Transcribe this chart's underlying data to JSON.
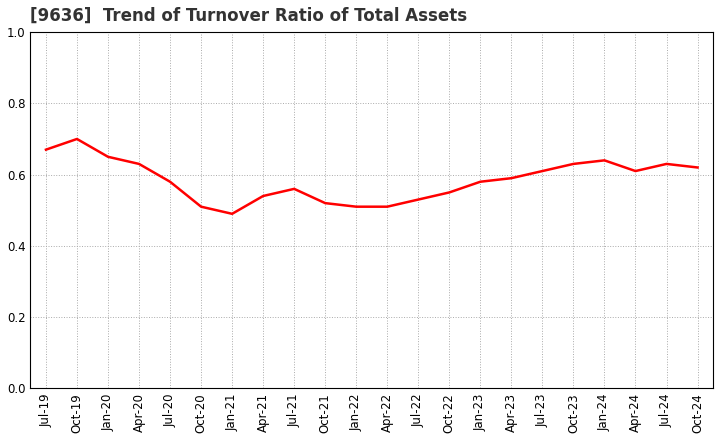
{
  "title": "[9636]  Trend of Turnover Ratio of Total Assets",
  "x_labels": [
    "Jul-19",
    "Oct-19",
    "Jan-20",
    "Apr-20",
    "Jul-20",
    "Oct-20",
    "Jan-21",
    "Apr-21",
    "Jul-21",
    "Oct-21",
    "Jan-22",
    "Apr-22",
    "Jul-22",
    "Oct-22",
    "Jan-23",
    "Apr-23",
    "Jul-23",
    "Oct-23",
    "Jan-24",
    "Apr-24",
    "Jul-24",
    "Oct-24"
  ],
  "values": [
    0.67,
    0.7,
    0.65,
    0.63,
    0.58,
    0.51,
    0.49,
    0.54,
    0.56,
    0.52,
    0.51,
    0.51,
    0.53,
    0.55,
    0.58,
    0.59,
    0.61,
    0.63,
    0.64,
    0.61,
    0.63,
    0.62
  ],
  "line_color": "#FF0000",
  "line_width": 1.8,
  "ylim": [
    0.0,
    1.0
  ],
  "yticks": [
    0.0,
    0.2,
    0.4,
    0.6,
    0.8,
    1.0
  ],
  "bg_color": "#FFFFFF",
  "grid_color": "#AAAAAA",
  "title_fontsize": 12,
  "tick_fontsize": 8.5,
  "title_color": "#333333"
}
